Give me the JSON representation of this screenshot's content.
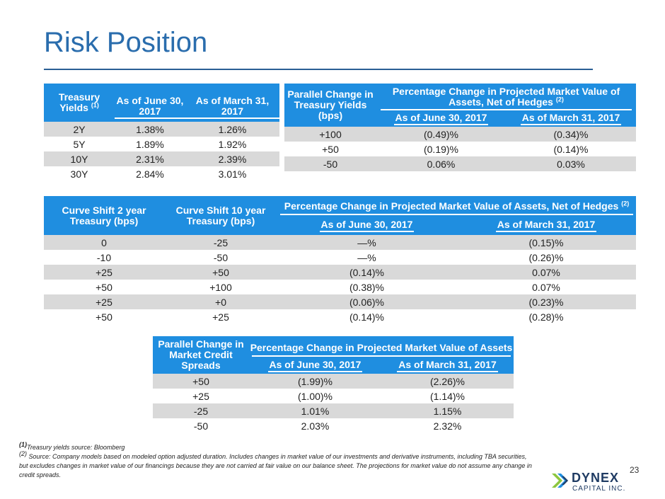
{
  "title": "Risk Position",
  "table1": {
    "h_col1": "Treasury Yields",
    "h_col1_sup": "(1)",
    "h_col2": "As of June 30, 2017",
    "h_col3": "As of March 31, 2017",
    "rows": [
      [
        "2Y",
        "1.38%",
        "1.26%"
      ],
      [
        "5Y",
        "1.89%",
        "1.92%"
      ],
      [
        "10Y",
        "2.31%",
        "2.39%"
      ],
      [
        "30Y",
        "2.84%",
        "3.01%"
      ]
    ]
  },
  "table2": {
    "h_col1": "Parallel Change in Treasury Yields (bps)",
    "h_group": "Percentage Change in Projected Market Value of Assets, Net of Hedges",
    "h_group_sup": "(2)",
    "h_sub1": "As of June 30, 2017",
    "h_sub2": "As of March 31, 2017",
    "rows": [
      [
        "+100",
        "(0.49)%",
        "(0.34)%"
      ],
      [
        "+50",
        "(0.19)%",
        "(0.14)%"
      ],
      [
        "-50",
        "0.06%",
        "0.03%"
      ]
    ]
  },
  "table3": {
    "h_col1": "Curve Shift 2 year Treasury (bps)",
    "h_col2": "Curve Shift 10 year Treasury (bps)",
    "h_group": "Percentage Change in Projected Market Value of Assets, Net of Hedges",
    "h_group_sup": "(2)",
    "h_sub1": "As of June 30, 2017",
    "h_sub2": "As of March 31, 2017",
    "rows": [
      [
        "0",
        "-25",
        "—%",
        "(0.15)%"
      ],
      [
        "-10",
        "-50",
        "—%",
        "(0.26)%"
      ],
      [
        "+25",
        "+50",
        "(0.14)%",
        "0.07%"
      ],
      [
        "+50",
        "+100",
        "(0.38)%",
        "0.07%"
      ],
      [
        "+25",
        "+0",
        "(0.06)%",
        "(0.23)%"
      ],
      [
        "+50",
        "+25",
        "(0.14)%",
        "(0.28)%"
      ]
    ]
  },
  "table4": {
    "h_col1": "Parallel Change in Market Credit Spreads",
    "h_group": "Percentage Change in Projected Market Value of Assets",
    "h_sub1": "As of June 30, 2017",
    "h_sub2": "As of March 31, 2017",
    "rows": [
      [
        "+50",
        "(1.99)%",
        "(2.26)%"
      ],
      [
        "+25",
        "(1.00)%",
        "(1.14)%"
      ],
      [
        "-25",
        "1.01%",
        "1.15%"
      ],
      [
        "-50",
        "2.03%",
        "2.32%"
      ]
    ]
  },
  "footnotes": {
    "f1_mark": "(1)",
    "f1": "Treasury yields source: Bloomberg",
    "f2_mark": "(2)",
    "f2": " Source: Company models based on modeled option adjusted duration. Includes changes in market value of our investments and derivative instruments, including TBA securities, but excludes changes in market value of our financings because they are not carried at fair value on our balance sheet. The projections for market value do not assume any change in credit spreads."
  },
  "page_number": "23",
  "logo": {
    "word": "DYNEX",
    "sub": "CAPITAL INC."
  },
  "colors": {
    "header_blue": "#1f8ee0",
    "title_blue": "#2a6dad",
    "row_shade": "#d9d9d9"
  }
}
